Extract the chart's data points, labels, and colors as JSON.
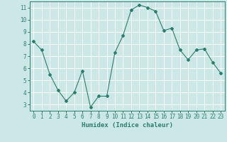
{
  "x": [
    0,
    1,
    2,
    3,
    4,
    5,
    6,
    7,
    8,
    9,
    10,
    11,
    12,
    13,
    14,
    15,
    16,
    17,
    18,
    19,
    20,
    21,
    22,
    23
  ],
  "y": [
    8.2,
    7.5,
    5.5,
    4.2,
    3.3,
    4.0,
    5.8,
    2.8,
    3.7,
    3.7,
    7.3,
    8.7,
    10.8,
    11.2,
    11.0,
    10.7,
    9.1,
    9.3,
    7.5,
    6.7,
    7.5,
    7.6,
    6.5,
    5.6
  ],
  "line_color": "#2d7d6e",
  "marker": "D",
  "marker_size": 2.0,
  "xlabel": "Humidex (Indice chaleur)",
  "xlim": [
    -0.5,
    23.5
  ],
  "ylim": [
    2.5,
    11.5
  ],
  "yticks": [
    3,
    4,
    5,
    6,
    7,
    8,
    9,
    10,
    11
  ],
  "xticks": [
    0,
    1,
    2,
    3,
    4,
    5,
    6,
    7,
    8,
    9,
    10,
    11,
    12,
    13,
    14,
    15,
    16,
    17,
    18,
    19,
    20,
    21,
    22,
    23
  ],
  "background_color": "#cce8e6",
  "grid_color": "#ffffff",
  "label_color": "#2d7d6e",
  "tick_color": "#2d7d6e",
  "font_family": "monospace",
  "xlabel_fontsize": 6.5,
  "tick_fontsize": 5.5
}
